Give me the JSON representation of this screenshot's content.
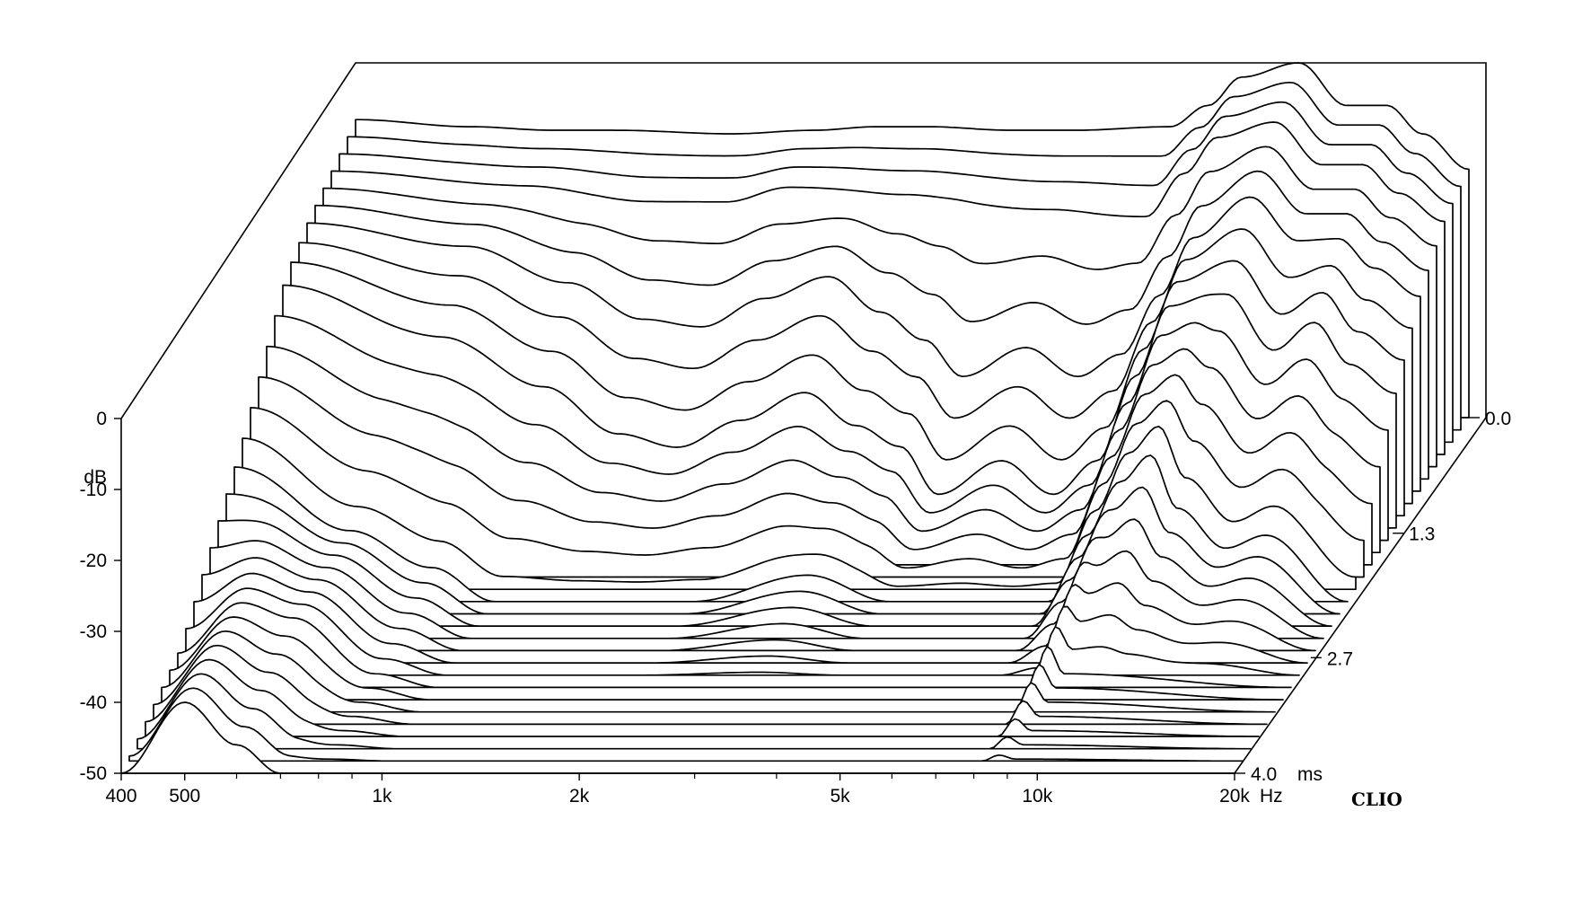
{
  "chart_data": {
    "type": "waterfall",
    "y_unit": "dB",
    "y_ticks": [
      "0",
      "-10",
      "-20",
      "-30",
      "-40",
      "-50"
    ],
    "ylim": [
      -50,
      0
    ],
    "x_unit": "Hz",
    "x_scale": "log",
    "xlim": [
      400,
      20000
    ],
    "x_ticks": [
      {
        "value": 400,
        "label": "400"
      },
      {
        "value": 500,
        "label": "500"
      },
      {
        "value": 1000,
        "label": "1k"
      },
      {
        "value": 2000,
        "label": "2k"
      },
      {
        "value": 5000,
        "label": "5k"
      },
      {
        "value": 10000,
        "label": "10k"
      },
      {
        "value": 20000,
        "label": "20k"
      }
    ],
    "x_minor_ticks": [
      600,
      700,
      800,
      900,
      3000,
      4000,
      6000,
      7000,
      8000,
      9000
    ],
    "z_unit": "ms",
    "zlim": [
      0.0,
      4.0
    ],
    "z_ticks": [
      {
        "value": 0.0,
        "label": "0.0"
      },
      {
        "value": 1.3,
        "label": "1.3"
      },
      {
        "value": 2.7,
        "label": "2.7"
      },
      {
        "value": 4.0,
        "label": "4.0"
      }
    ],
    "num_slices": 30,
    "brand": "CLIO",
    "series": [
      {
        "t_ms": 0.0,
        "db": [
          [
            400,
            -8
          ],
          [
            600,
            -9
          ],
          [
            800,
            -9.5
          ],
          [
            1000,
            -9.5
          ],
          [
            1500,
            -10
          ],
          [
            2000,
            -9.5
          ],
          [
            2500,
            -9
          ],
          [
            3000,
            -9
          ],
          [
            4000,
            -9.5
          ],
          [
            5000,
            -9.5
          ],
          [
            7000,
            -9
          ],
          [
            8000,
            -6
          ],
          [
            9000,
            -2
          ],
          [
            11000,
            0
          ],
          [
            13000,
            -6
          ],
          [
            15000,
            -6
          ],
          [
            17000,
            -10
          ],
          [
            20000,
            -15
          ]
        ]
      },
      {
        "t_ms": 0.4,
        "db": [
          [
            400,
            -10
          ],
          [
            800,
            -12
          ],
          [
            1200,
            -14
          ],
          [
            1600,
            -14
          ],
          [
            2000,
            -12
          ],
          [
            3000,
            -13
          ],
          [
            5000,
            -15
          ],
          [
            7000,
            -16
          ],
          [
            8000,
            -10
          ],
          [
            9000,
            -5
          ],
          [
            11000,
            -3
          ],
          [
            13000,
            -9
          ],
          [
            15000,
            -9
          ],
          [
            17000,
            -13
          ],
          [
            20000,
            -17
          ]
        ]
      },
      {
        "t_ms": 0.8,
        "db": [
          [
            400,
            -12
          ],
          [
            700,
            -15
          ],
          [
            1000,
            -20
          ],
          [
            1300,
            -25
          ],
          [
            1600,
            -26
          ],
          [
            2000,
            -22
          ],
          [
            2500,
            -19
          ],
          [
            3000,
            -24
          ],
          [
            3500,
            -28
          ],
          [
            4000,
            -33
          ],
          [
            5000,
            -29
          ],
          [
            6000,
            -33
          ],
          [
            7000,
            -30
          ],
          [
            8000,
            -22
          ],
          [
            9000,
            -14
          ],
          [
            11000,
            -8
          ],
          [
            13000,
            -14
          ],
          [
            15000,
            -14
          ],
          [
            17000,
            -18
          ],
          [
            20000,
            -22
          ]
        ]
      },
      {
        "t_ms": 1.2,
        "db": [
          [
            400,
            -15
          ],
          [
            700,
            -22
          ],
          [
            1000,
            -29
          ],
          [
            1300,
            -36
          ],
          [
            1600,
            -38
          ],
          [
            2000,
            -34
          ],
          [
            2500,
            -30
          ],
          [
            3000,
            -35
          ],
          [
            3500,
            -38
          ],
          [
            4000,
            -45
          ],
          [
            5000,
            -40
          ],
          [
            6000,
            -45
          ],
          [
            7000,
            -40
          ],
          [
            8000,
            -28
          ],
          [
            9000,
            -18
          ],
          [
            11000,
            -16
          ],
          [
            13000,
            -24
          ],
          [
            15000,
            -20
          ],
          [
            17000,
            -26
          ],
          [
            20000,
            -30
          ]
        ]
      },
      {
        "t_ms": 2.0,
        "db": [
          [
            400,
            -30
          ],
          [
            600,
            -40
          ],
          [
            800,
            -45
          ],
          [
            1000,
            -50
          ],
          [
            2000,
            -50
          ],
          [
            3000,
            -46
          ],
          [
            4000,
            -50
          ],
          [
            7000,
            -50
          ],
          [
            8000,
            -40
          ],
          [
            9000,
            -32
          ],
          [
            10000,
            -28
          ],
          [
            11000,
            -36
          ],
          [
            13000,
            -42
          ],
          [
            15000,
            -40
          ],
          [
            20000,
            -50
          ]
        ]
      },
      {
        "t_ms": 3.0,
        "db": [
          [
            400,
            -45
          ],
          [
            500,
            -38
          ],
          [
            600,
            -40
          ],
          [
            800,
            -48
          ],
          [
            1000,
            -50
          ],
          [
            8000,
            -50
          ],
          [
            8500,
            -44
          ],
          [
            9000,
            -48
          ],
          [
            20000,
            -50
          ]
        ]
      },
      {
        "t_ms": 4.0,
        "db": [
          [
            400,
            -50
          ],
          [
            500,
            -40
          ],
          [
            600,
            -46
          ],
          [
            700,
            -50
          ],
          [
            20000,
            -50
          ]
        ]
      }
    ]
  }
}
